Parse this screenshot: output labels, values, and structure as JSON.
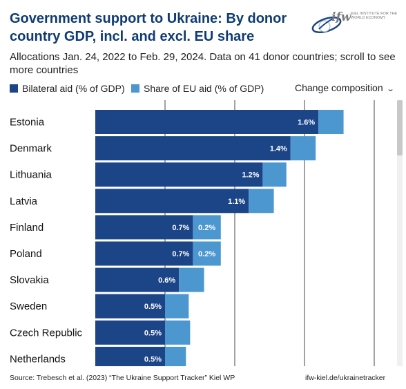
{
  "header": {
    "title_line1": "Government support to Ukraine: By donor",
    "title_line2": "country GDP, incl. and excl. EU share",
    "subtitle": "Allocations Jan. 24, 2022 to Feb. 29, 2024. Data on 41 donor countries; scroll to see more countries"
  },
  "logo": {
    "text": "ifw",
    "subtext": "KIEL INSTITUTE FOR THE WORLD ECONOMY"
  },
  "legend": {
    "bilateral_label": "Bilateral aid (% of GDP)",
    "eu_label": "Share of EU aid (% of GDP)"
  },
  "controls": {
    "dropdown_label": "Change composition"
  },
  "footer": {
    "source": "Source: Trebesch et al. (2023) “The Ukraine Support Tracker” Kiel WP",
    "site": "ifw-kiel.de/ukrainetracker"
  },
  "colors": {
    "bilateral": "#1c4587",
    "eu": "#4c97d0",
    "title": "#0f3b73",
    "grid": "#444444"
  },
  "chart_data": {
    "type": "bar",
    "orientation": "horizontal",
    "stacked": true,
    "categories": [
      "Estonia",
      "Denmark",
      "Lithuania",
      "Latvia",
      "Finland",
      "Poland",
      "Slovakia",
      "Sweden",
      "Czech Republic",
      "Netherlands"
    ],
    "series": [
      {
        "name": "Bilateral aid (% of GDP)",
        "values": [
          1.6,
          1.4,
          1.2,
          1.1,
          0.7,
          0.7,
          0.6,
          0.5,
          0.5,
          0.5
        ],
        "labels": [
          "1.6%",
          "1.4%",
          "1.2%",
          "1.1%",
          "0.7%",
          "0.7%",
          "0.6%",
          "0.5%",
          "0.5%",
          "0.5%"
        ]
      },
      {
        "name": "Share of EU aid (% of GDP)",
        "values": [
          0.18,
          0.18,
          0.17,
          0.18,
          0.2,
          0.2,
          0.18,
          0.17,
          0.18,
          0.15
        ],
        "labels": [
          "",
          "",
          "",
          "",
          "0.2%",
          "0.2%",
          "",
          "",
          "",
          ""
        ]
      }
    ],
    "xlim": [
      0,
      2.2
    ],
    "gridlines": [
      0.5,
      1.0,
      1.5,
      2.0
    ],
    "grid": true
  }
}
